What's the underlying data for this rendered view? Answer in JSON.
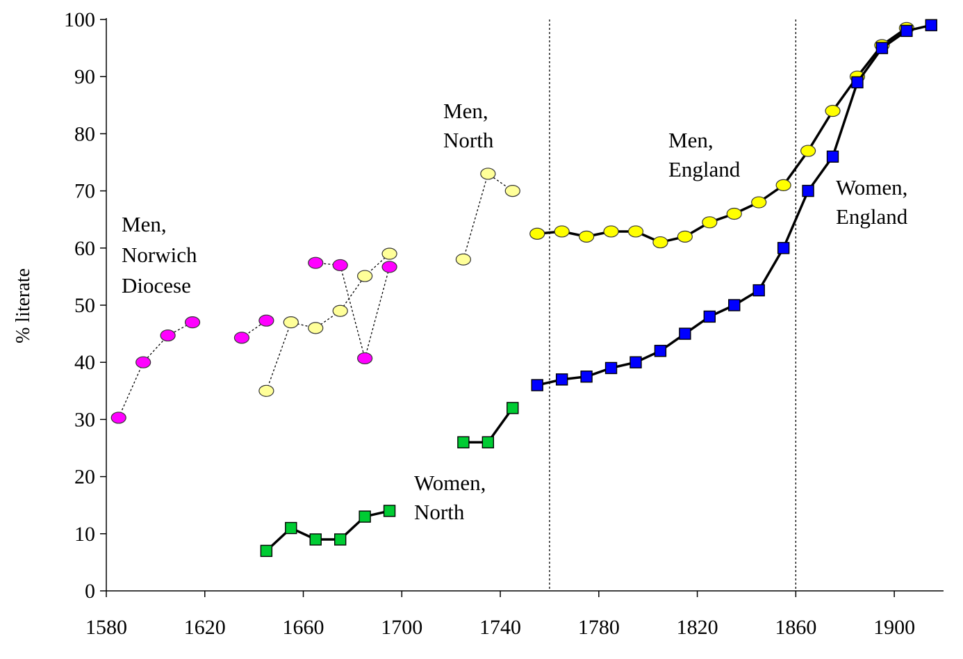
{
  "chart_data": {
    "type": "line",
    "ylabel": "% literate",
    "xlabel": "",
    "title": "",
    "xlim": [
      1580,
      1920
    ],
    "ylim": [
      0,
      100
    ],
    "xticks": [
      "1580",
      "1620",
      "1660",
      "1700",
      "1740",
      "1780",
      "1820",
      "1860",
      "1900"
    ],
    "yticks": [
      "0",
      "10",
      "20",
      "30",
      "40",
      "50",
      "60",
      "70",
      "80",
      "90",
      "100"
    ],
    "grid": false,
    "vertical_reference_lines": [
      1760,
      1860
    ],
    "colors": {
      "magenta": "#ff00ff",
      "light_yellow": "#ffff99",
      "yellow": "#ffff00",
      "green": "#00cc33",
      "blue": "#0000ff"
    },
    "series": [
      {
        "label_lines": [
          "Men,",
          "Norwich",
          "Diocese"
        ],
        "marker": "ellipse",
        "color": "#ff00ff",
        "line": "dashed",
        "segments": [
          [
            [
              1585,
              30.3
            ],
            [
              1595,
              40
            ],
            [
              1605,
              44.7
            ],
            [
              1615,
              47
            ]
          ],
          [
            [
              1635,
              44.3
            ],
            [
              1645,
              47.3
            ]
          ],
          [
            [
              1665,
              57.4
            ],
            [
              1675,
              57
            ],
            [
              1685,
              40.7
            ],
            [
              1695,
              56.7
            ]
          ]
        ]
      },
      {
        "label_lines": [
          "Men,",
          "North"
        ],
        "marker": "ellipse",
        "color": "#ffff99",
        "line": "dashed",
        "segments": [
          [
            [
              1645,
              35
            ],
            [
              1655,
              47
            ],
            [
              1665,
              46
            ],
            [
              1675,
              49
            ],
            [
              1685,
              55.1
            ],
            [
              1695,
              59
            ]
          ],
          [
            [
              1725,
              58
            ],
            [
              1735,
              73
            ],
            [
              1745,
              70
            ]
          ]
        ]
      },
      {
        "label_lines": [
          "Women,",
          "North"
        ],
        "marker": "square",
        "color": "#00cc33",
        "line": "solid",
        "segments": [
          [
            [
              1645,
              7
            ],
            [
              1655,
              11
            ],
            [
              1665,
              9
            ],
            [
              1675,
              9
            ],
            [
              1685,
              13
            ],
            [
              1695,
              14
            ]
          ],
          [
            [
              1725,
              26
            ],
            [
              1735,
              26
            ],
            [
              1745,
              32
            ]
          ]
        ]
      },
      {
        "label_lines": [
          "Men,",
          "England"
        ],
        "marker": "ellipse",
        "color": "#ffff00",
        "line": "solid",
        "segments": [
          [
            [
              1755,
              62.5
            ],
            [
              1765,
              62.9
            ],
            [
              1775,
              62
            ],
            [
              1785,
              62.9
            ],
            [
              1795,
              62.9
            ],
            [
              1805,
              61
            ],
            [
              1815,
              62
            ],
            [
              1825,
              64.5
            ],
            [
              1835,
              66
            ],
            [
              1845,
              68
            ],
            [
              1855,
              71
            ],
            [
              1865,
              77
            ],
            [
              1875,
              84
            ],
            [
              1885,
              90
            ],
            [
              1895,
              95.5
            ],
            [
              1905,
              98.5
            ]
          ]
        ]
      },
      {
        "label_lines": [
          "Women,",
          "England"
        ],
        "marker": "square",
        "color": "#0000ff",
        "line": "solid",
        "segments": [
          [
            [
              1755,
              36
            ],
            [
              1765,
              37
            ],
            [
              1775,
              37.5
            ],
            [
              1785,
              39
            ],
            [
              1795,
              40
            ],
            [
              1805,
              42
            ],
            [
              1815,
              45
            ],
            [
              1825,
              48
            ],
            [
              1835,
              50
            ],
            [
              1845,
              52.6
            ],
            [
              1855,
              60
            ],
            [
              1865,
              70
            ],
            [
              1875,
              76
            ],
            [
              1885,
              89
            ],
            [
              1895,
              95
            ],
            [
              1905,
              98
            ],
            [
              1915,
              99
            ]
          ]
        ]
      }
    ]
  }
}
